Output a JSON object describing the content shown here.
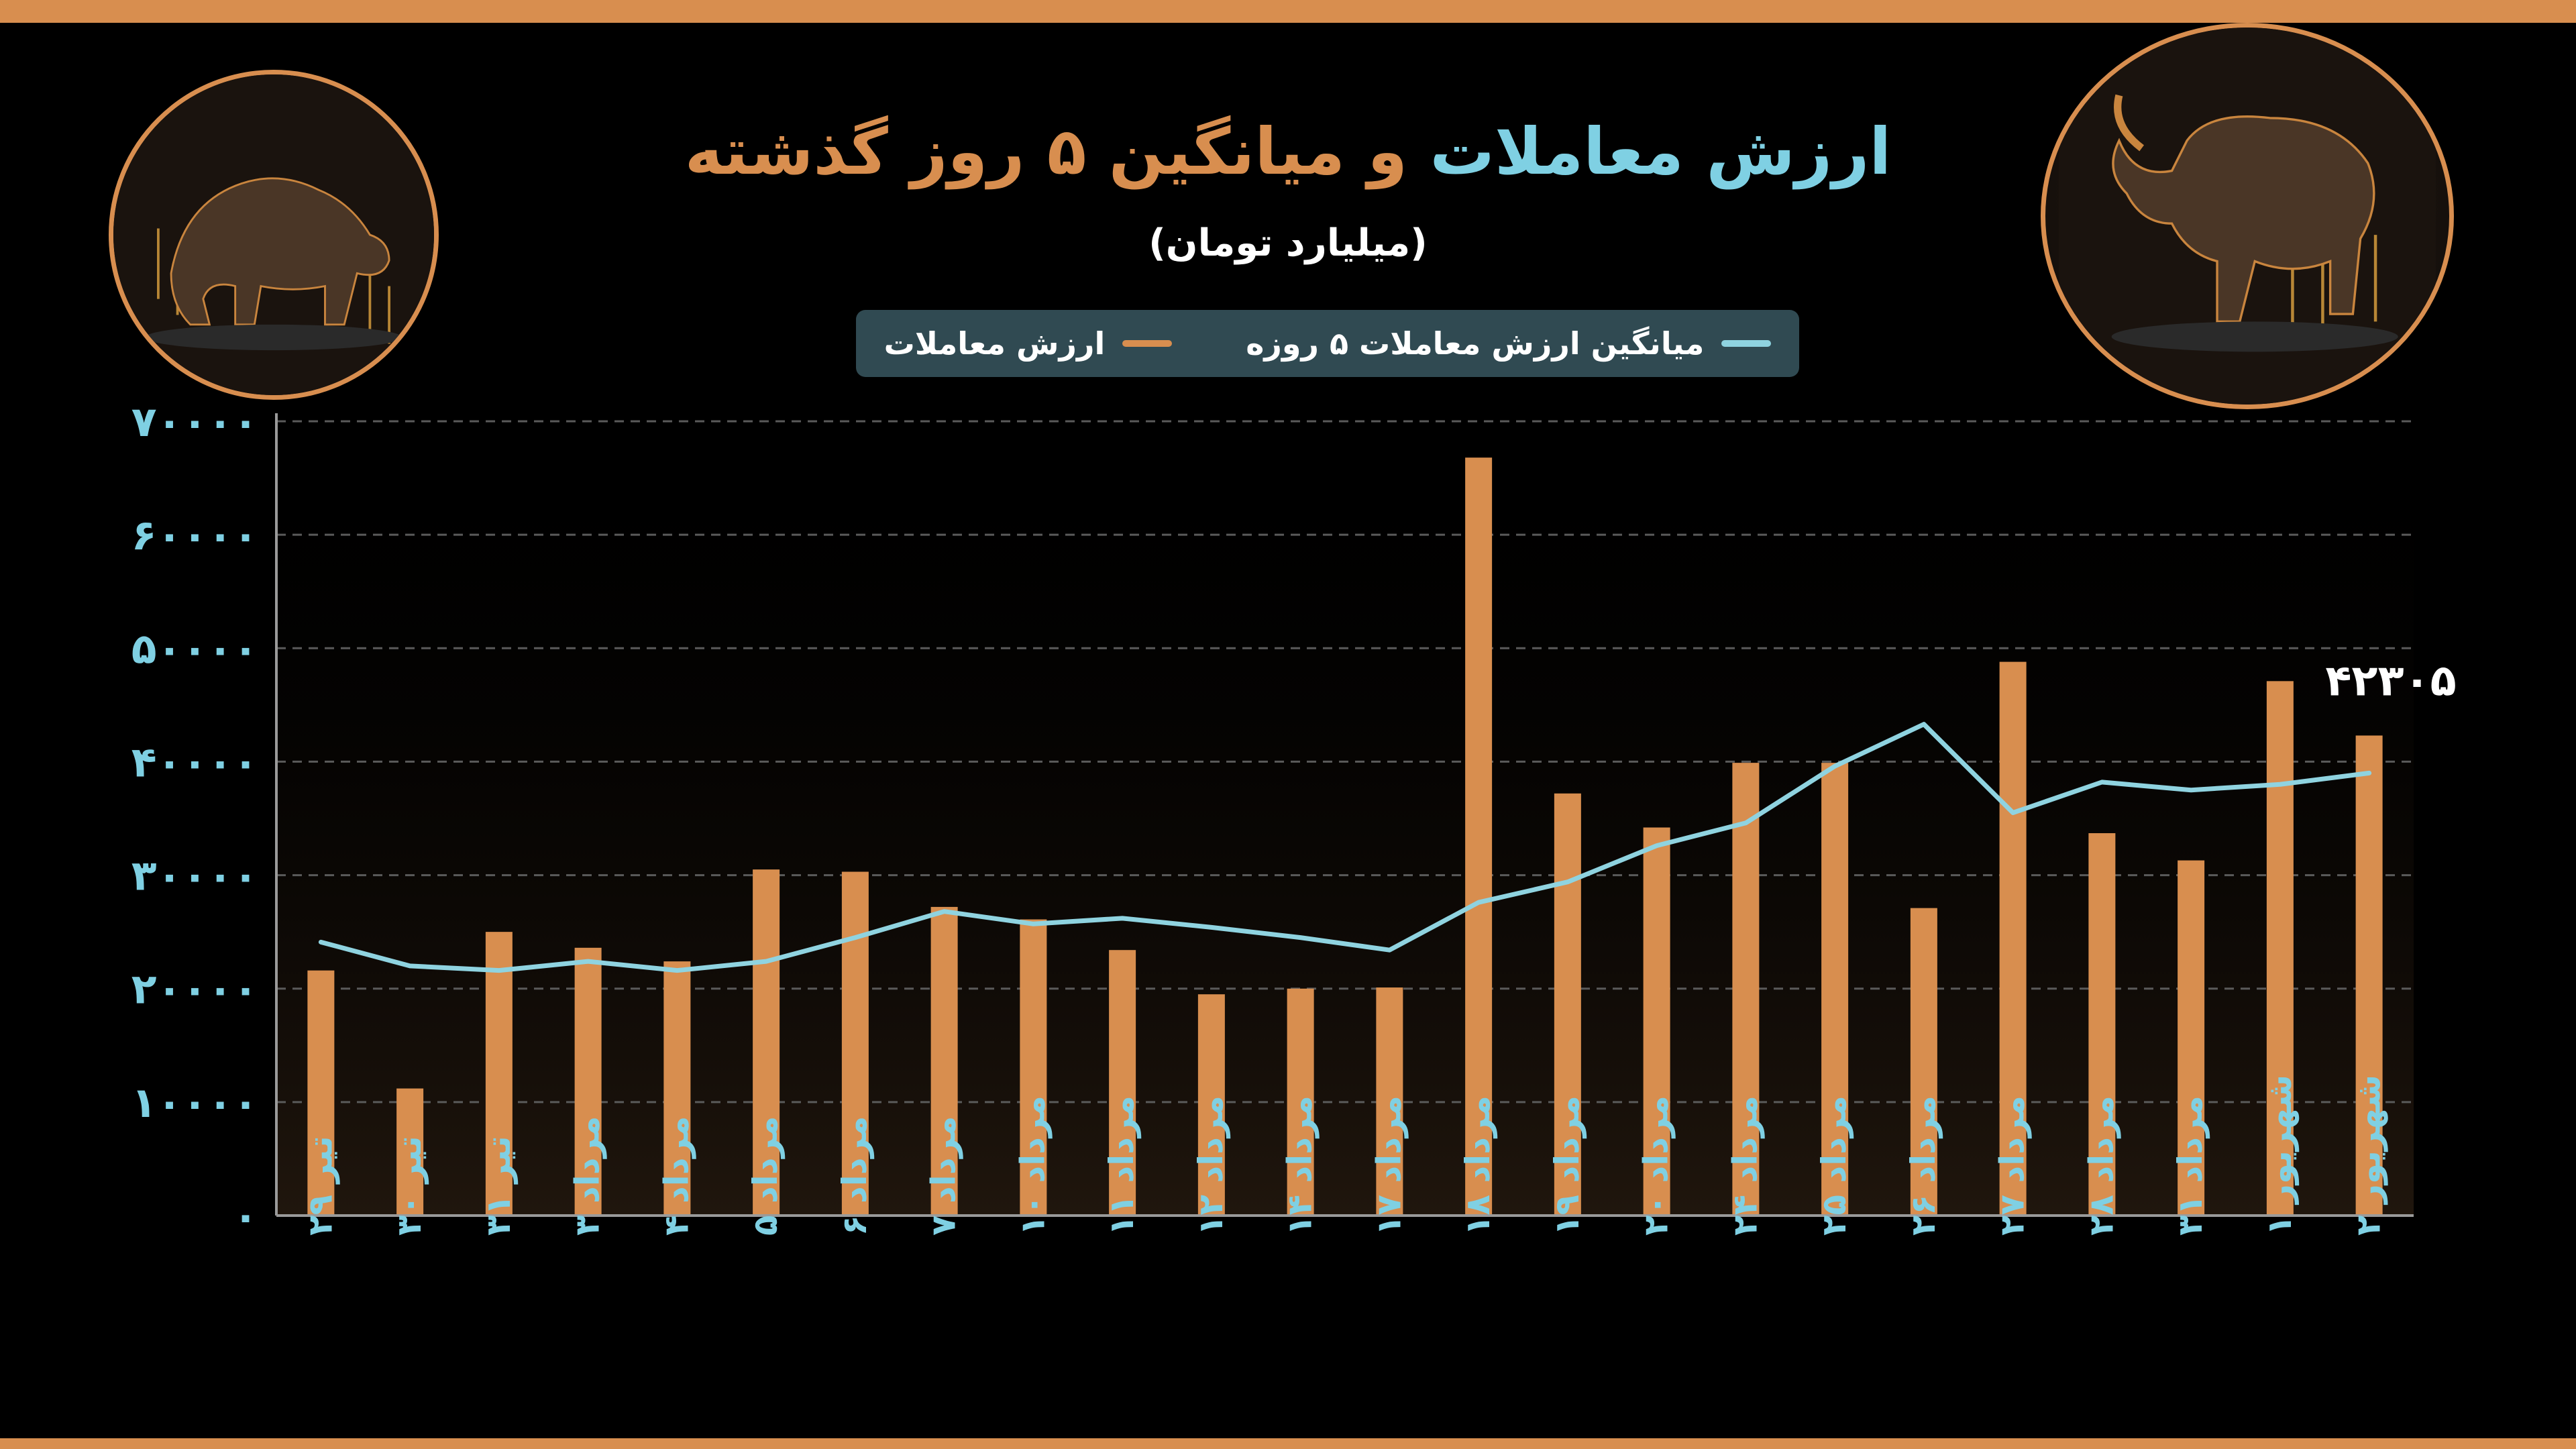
{
  "title": {
    "accent": "ارزش معاملات",
    "rest": " و میانگین ۵ روز گذشته"
  },
  "subtitle": "(میلیارد تومان)",
  "legend": {
    "line_label": "میانگین ارزش معاملات ۵ روزه",
    "bar_label": "ارزش معاملات"
  },
  "colors": {
    "bar": "#d88e4f",
    "line": "#8fd3e0",
    "axis_text": "#7fd0e3",
    "legend_bg": "#304a52",
    "frame": "#d88e4f"
  },
  "icons": {
    "left": "bear-icon",
    "right": "bull-icon"
  },
  "chart_data": {
    "type": "bar",
    "ylim": [
      0,
      70000
    ],
    "y_ticks": [
      0,
      10000,
      20000,
      30000,
      40000,
      50000,
      60000,
      70000
    ],
    "y_tick_labels": [
      "۰",
      "۱۰۰۰۰",
      "۲۰۰۰۰",
      "۳۰۰۰۰",
      "۴۰۰۰۰",
      "۵۰۰۰۰",
      "۶۰۰۰۰",
      "۷۰۰۰۰"
    ],
    "grid": true,
    "legend_position": "top-center",
    "categories": [
      "تیر ۲۹",
      "تیر ۳۰",
      "تیر ۳۱",
      "مرداد ۳",
      "مرداد ۴",
      "مرداد ۵",
      "مرداد ۶",
      "مرداد ۷",
      "مرداد ۱۰",
      "مرداد ۱۱",
      "مرداد ۱۲",
      "مرداد ۱۴",
      "مرداد ۱۷",
      "مرداد ۱۸",
      "مرداد ۱۹",
      "مرداد ۲۰",
      "مرداد ۲۴",
      "مرداد ۲۵",
      "مرداد ۲۶",
      "مرداد ۲۷",
      "مرداد ۲۸",
      "مرداد ۳۱",
      "شهریور ۱",
      "شهریور ۲"
    ],
    "series": [
      {
        "name": "ارزش معاملات",
        "type": "bar",
        "values": [
          21600,
          11200,
          25000,
          23600,
          22400,
          30500,
          30300,
          27200,
          26100,
          23400,
          19500,
          20000,
          20100,
          66800,
          37200,
          34200,
          39900,
          39900,
          27100,
          48800,
          33700,
          31300,
          47100,
          42305
        ]
      },
      {
        "name": "میانگین ارزش معاملات ۵ روزه",
        "type": "line",
        "values": [
          24100,
          22000,
          21600,
          22400,
          21600,
          22400,
          24500,
          26800,
          25700,
          26200,
          25400,
          24500,
          23400,
          27600,
          29400,
          32600,
          34600,
          39600,
          43300,
          35500,
          38200,
          37500,
          38000,
          39000
        ]
      }
    ],
    "annotations": [
      {
        "category": "شهریور ۲",
        "text": "۴۲۳۰۵"
      }
    ]
  }
}
